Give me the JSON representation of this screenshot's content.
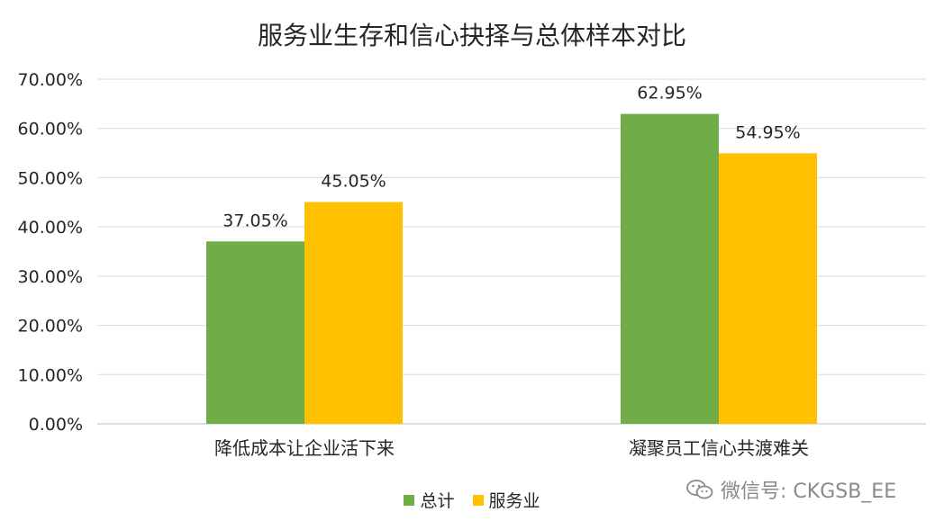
{
  "chart_data": {
    "type": "bar",
    "title": "服务业生存和信心抉择与总体样本对比",
    "categories": [
      "降低成本让企业活下来",
      "凝聚员工信心共渡难关"
    ],
    "series": [
      {
        "name": "总计",
        "values": [
          37.05,
          62.95
        ],
        "labels": [
          "37.05%",
          "62.95%"
        ],
        "color": "#70AD47"
      },
      {
        "name": "服务业",
        "values": [
          45.05,
          54.95
        ],
        "labels": [
          "45.05%",
          "54.95%"
        ],
        "color": "#FFC000"
      }
    ],
    "ylim": [
      0,
      70
    ],
    "yticks": [
      "0.00%",
      "10.00%",
      "20.00%",
      "30.00%",
      "40.00%",
      "50.00%",
      "60.00%",
      "70.00%"
    ],
    "grid": true,
    "legend_position": "bottom-center"
  },
  "watermark": {
    "text": "微信号: CKGSB_EE",
    "icon": "wechat-icon"
  }
}
